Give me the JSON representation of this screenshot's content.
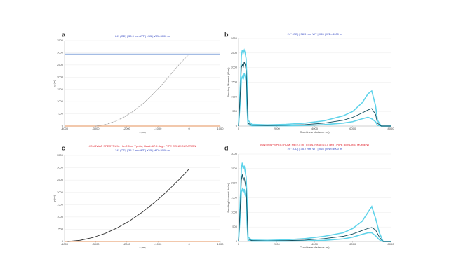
{
  "chart_data": [
    {
      "type": "line",
      "label": "a",
      "subtitle": "24\" (OD) | 38.9 mm WT | X65 | WD=3000 m",
      "xlabel": "x (m)",
      "ylabel": "y (m)",
      "x": [
        -3000,
        -2700,
        -2400,
        -2100,
        -1800,
        -1500,
        -1200,
        -900,
        -600,
        -300,
        0
      ],
      "series": [
        {
          "color": "#9a9a9a",
          "dashed": true,
          "values": [
            0,
            60,
            180,
            360,
            600,
            900,
            1250,
            1650,
            2100,
            2550,
            2950
          ]
        }
      ],
      "reference_lines": [
        {
          "value": 2950,
          "color": "#4a78c8"
        },
        {
          "value": 0,
          "color": "#ed7d31"
        }
      ],
      "x_reference": 0,
      "xlim": [
        -4000,
        1000
      ],
      "xticks": [
        -4000,
        -3000,
        -2000,
        -1000,
        0,
        1000
      ],
      "ylim": [
        0,
        3500
      ],
      "yticks": [
        0,
        500,
        1000,
        1500,
        2000,
        2500,
        3000,
        3500
      ],
      "grid": true
    },
    {
      "type": "line",
      "label": "b",
      "subtitle": "24\" (OD) | 38.9 mm WT | X65 | WD=3000 m",
      "xlabel": "Curvilinear distance (m)",
      "ylabel": "Bending Moment (kNm)",
      "x": [
        0,
        100,
        150,
        200,
        250,
        300,
        350,
        400,
        450,
        500,
        700,
        1500,
        2500,
        3500,
        4500,
        5500,
        6000,
        6500,
        6800,
        7000,
        7200,
        7300,
        7500,
        8000
      ],
      "series": [
        {
          "color": "#5fd3ea",
          "values": [
            0,
            1500,
            2400,
            2600,
            2500,
            2600,
            2500,
            2300,
            1500,
            200,
            60,
            40,
            60,
            100,
            180,
            350,
            500,
            800,
            1100,
            1200,
            700,
            200,
            0,
            0
          ]
        },
        {
          "color": "#5fd3ea",
          "values": [
            0,
            900,
            1600,
            1700,
            1600,
            1800,
            1700,
            1500,
            600,
            50,
            10,
            10,
            10,
            20,
            50,
            100,
            150,
            250,
            300,
            250,
            150,
            30,
            0,
            0
          ]
        },
        {
          "color": "#0e4a5a",
          "values": [
            0,
            1200,
            2000,
            2100,
            2000,
            2200,
            2100,
            1900,
            1000,
            100,
            30,
            20,
            30,
            50,
            100,
            200,
            300,
            450,
            550,
            600,
            400,
            100,
            0,
            0
          ]
        }
      ],
      "xlim": [
        0,
        8000
      ],
      "xticks": [
        0,
        2000,
        4000,
        6000,
        8000
      ],
      "ylim": [
        0,
        3000
      ],
      "yticks": [
        0,
        500,
        1000,
        1500,
        2000,
        2500,
        3000
      ],
      "grid": true
    },
    {
      "type": "line",
      "label": "c",
      "title": "JONSWAP SPECTRUM: Hs=2.5 m, Tp=8s, Head=67.5 deg - PIPE CONFIGURATION",
      "subtitle": "24\" (OD) | 35.7 mm WT | X65 | WD=3000 m",
      "xlabel": "x (m)",
      "ylabel": "y (m)",
      "x": [
        -3900,
        -3500,
        -3100,
        -2700,
        -2300,
        -1900,
        -1500,
        -1100,
        -700,
        -300,
        0
      ],
      "series": [
        {
          "color": "#333333",
          "values": [
            0,
            50,
            160,
            330,
            560,
            850,
            1200,
            1600,
            2050,
            2550,
            2950
          ]
        }
      ],
      "reference_lines": [
        {
          "value": 2950,
          "color": "#4a78c8"
        },
        {
          "value": 0,
          "color": "#ed7d31"
        }
      ],
      "x_reference": 0,
      "xlim": [
        -4000,
        1000
      ],
      "xticks": [
        -4000,
        -3000,
        -2000,
        -1000,
        0,
        1000
      ],
      "ylim": [
        0,
        3500
      ],
      "yticks": [
        0,
        500,
        1000,
        1500,
        2000,
        2500,
        3000,
        3500
      ],
      "grid": true
    },
    {
      "type": "line",
      "label": "d",
      "title": "JONSWAP SPECTRUM: Hs=2.5 m, Tp=8s, Head=67.5 deg - PIPE BENDING MOMENT",
      "subtitle": "24\" (OD) | 35.7 mm WT | X65 | WD=3000 m",
      "xlabel": "Curvilinear distance (m)",
      "ylabel": "Bending Moment (kNm)",
      "x": [
        0,
        100,
        150,
        200,
        250,
        300,
        350,
        400,
        450,
        500,
        700,
        1500,
        2500,
        3500,
        4500,
        5500,
        6000,
        6500,
        6800,
        7000,
        7200,
        7400,
        7600,
        8000
      ],
      "series": [
        {
          "color": "#5fd3ea",
          "values": [
            0,
            1600,
            2500,
            2700,
            2500,
            2600,
            2400,
            2200,
            1400,
            150,
            50,
            40,
            60,
            100,
            180,
            300,
            450,
            700,
            1000,
            1200,
            800,
            300,
            0,
            0
          ]
        },
        {
          "color": "#5fd3ea",
          "values": [
            0,
            1000,
            1700,
            1800,
            1700,
            1800,
            1600,
            1500,
            600,
            40,
            10,
            10,
            10,
            20,
            40,
            90,
            150,
            250,
            300,
            300,
            200,
            60,
            0,
            0
          ]
        },
        {
          "color": "#0e4a5a",
          "values": [
            0,
            1300,
            2100,
            2300,
            2100,
            2200,
            2000,
            1800,
            1000,
            90,
            30,
            20,
            30,
            50,
            100,
            180,
            260,
            380,
            450,
            480,
            400,
            150,
            0,
            0
          ]
        }
      ],
      "xlim": [
        0,
        8000
      ],
      "xticks": [
        0,
        2000,
        4000,
        6000,
        8000
      ],
      "ylim": [
        0,
        3000
      ],
      "yticks": [
        0,
        500,
        1000,
        1500,
        2000,
        2500,
        3000
      ],
      "grid": true
    }
  ]
}
